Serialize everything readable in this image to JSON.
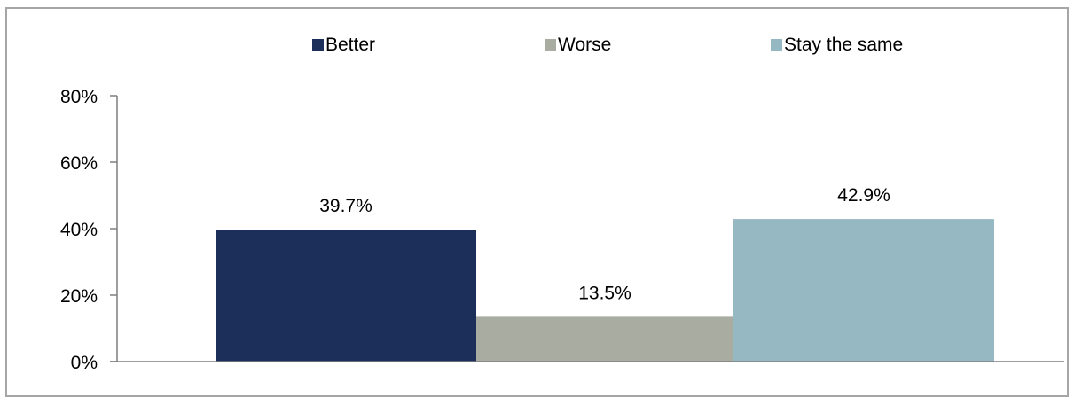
{
  "chart_data": {
    "type": "bar",
    "categories": [
      "Better",
      "Worse",
      "Stay the same"
    ],
    "values": [
      39.7,
      13.5,
      42.9
    ],
    "data_labels": [
      "39.7%",
      "13.5%",
      "42.9%"
    ],
    "colors": [
      "#1b2f5a",
      "#a9ada1",
      "#96b8c2"
    ],
    "title": "",
    "xlabel": "",
    "ylabel": "",
    "ylim": [
      0,
      80
    ],
    "yticks": [
      0,
      20,
      40,
      60,
      80
    ],
    "ytick_labels": [
      "0%",
      "20%",
      "40%",
      "60%",
      "80%"
    ],
    "legend": {
      "position": "top",
      "entries": [
        "Better",
        "Worse",
        "Stay the same"
      ]
    },
    "grid": false
  }
}
